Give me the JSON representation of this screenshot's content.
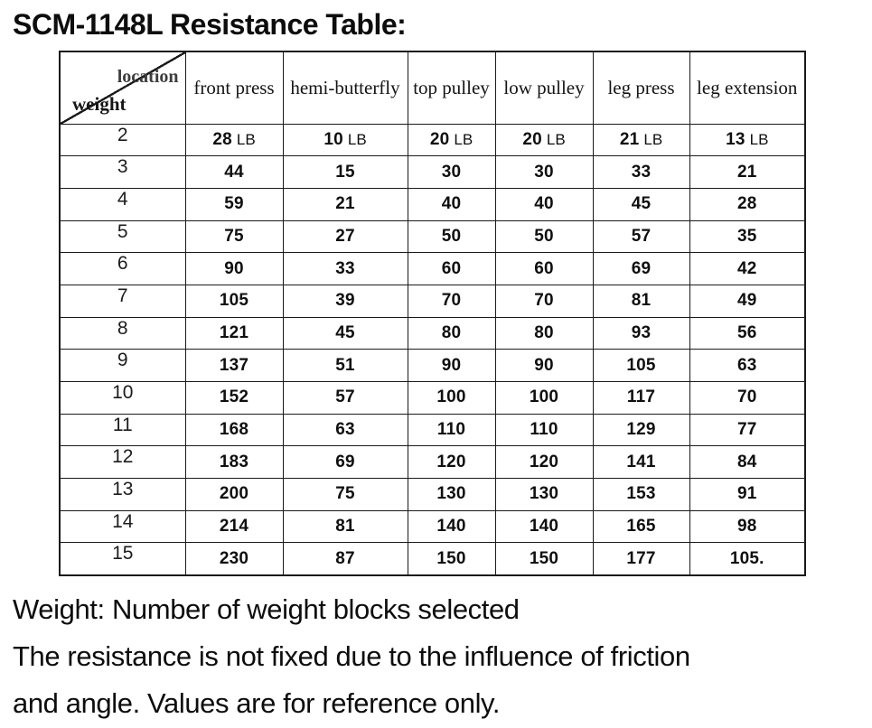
{
  "title": "SCM-1148L Resistance Table:",
  "table": {
    "corner": {
      "top_label": "location",
      "bottom_label": "weight"
    },
    "columns": [
      "front press",
      "hemi-butterfly",
      "top pulley",
      "low pulley",
      "leg press",
      "leg extension"
    ],
    "unit": "LB",
    "rows": [
      {
        "weight": "2",
        "unit_shown": true,
        "values": [
          "28",
          "10",
          "20",
          "20",
          "21",
          "13"
        ]
      },
      {
        "weight": "3",
        "unit_shown": false,
        "values": [
          "44",
          "15",
          "30",
          "30",
          "33",
          "21"
        ]
      },
      {
        "weight": "4",
        "unit_shown": false,
        "values": [
          "59",
          "21",
          "40",
          "40",
          "45",
          "28"
        ]
      },
      {
        "weight": "5",
        "unit_shown": false,
        "values": [
          "75",
          "27",
          "50",
          "50",
          "57",
          "35"
        ]
      },
      {
        "weight": "6",
        "unit_shown": false,
        "values": [
          "90",
          "33",
          "60",
          "60",
          "69",
          "42"
        ]
      },
      {
        "weight": "7",
        "unit_shown": false,
        "values": [
          "105",
          "39",
          "70",
          "70",
          "81",
          "49"
        ]
      },
      {
        "weight": "8",
        "unit_shown": false,
        "values": [
          "121",
          "45",
          "80",
          "80",
          "93",
          "56"
        ]
      },
      {
        "weight": "9",
        "unit_shown": false,
        "values": [
          "137",
          "51",
          "90",
          "90",
          "105",
          "63"
        ]
      },
      {
        "weight": "10",
        "unit_shown": false,
        "values": [
          "152",
          "57",
          "100",
          "100",
          "117",
          "70"
        ]
      },
      {
        "weight": "11",
        "unit_shown": false,
        "values": [
          "168",
          "63",
          "110",
          "110",
          "129",
          "77"
        ]
      },
      {
        "weight": "12",
        "unit_shown": false,
        "values": [
          "183",
          "69",
          "120",
          "120",
          "141",
          "84"
        ]
      },
      {
        "weight": "13",
        "unit_shown": false,
        "values": [
          "200",
          "75",
          "130",
          "130",
          "153",
          "91"
        ]
      },
      {
        "weight": "14",
        "unit_shown": false,
        "values": [
          "214",
          "81",
          "140",
          "140",
          "165",
          "98"
        ]
      },
      {
        "weight": "15",
        "unit_shown": false,
        "values": [
          "230",
          "87",
          "150",
          "150",
          "177",
          "105."
        ]
      }
    ]
  },
  "note_lines": [
    "Weight: Number of weight blocks selected",
    "The resistance is not fixed due to the influence of friction",
    "and angle. Values are for reference only."
  ],
  "colors": {
    "background": "#ffffff",
    "text": "#111111",
    "grid": "#1a1a1a",
    "corner_label": "#3d3d3d"
  }
}
